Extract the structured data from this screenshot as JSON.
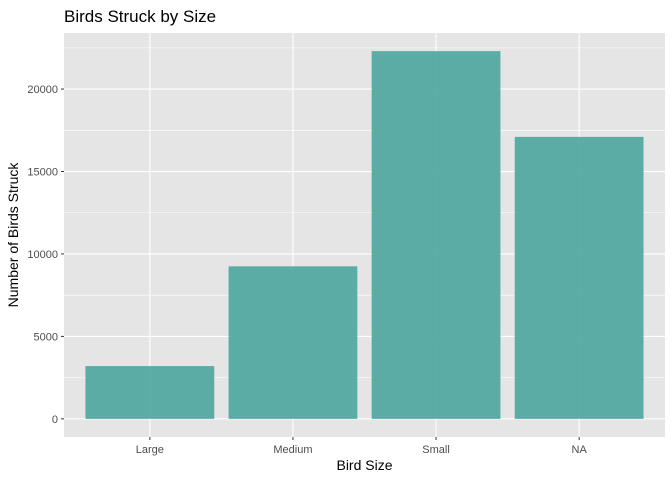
{
  "chart_data": {
    "type": "bar",
    "title": "Birds Struck by Size",
    "xlabel": "Bird Size",
    "ylabel": "Number of Birds Struck",
    "categories": [
      "Large",
      "Medium",
      "Small",
      "NA"
    ],
    "values": [
      3200,
      9250,
      22300,
      17100
    ],
    "ylim": [
      -1100,
      23400
    ],
    "yticks": [
      0,
      5000,
      10000,
      15000,
      20000
    ],
    "ytick_labels": [
      "0",
      "5000",
      "10000",
      "15000",
      "20000"
    ],
    "grid": true,
    "legend": "none",
    "colors": {
      "bar": "#4aa59c",
      "panel_background": "#e5e5e5",
      "grid": "#ffffff"
    }
  }
}
